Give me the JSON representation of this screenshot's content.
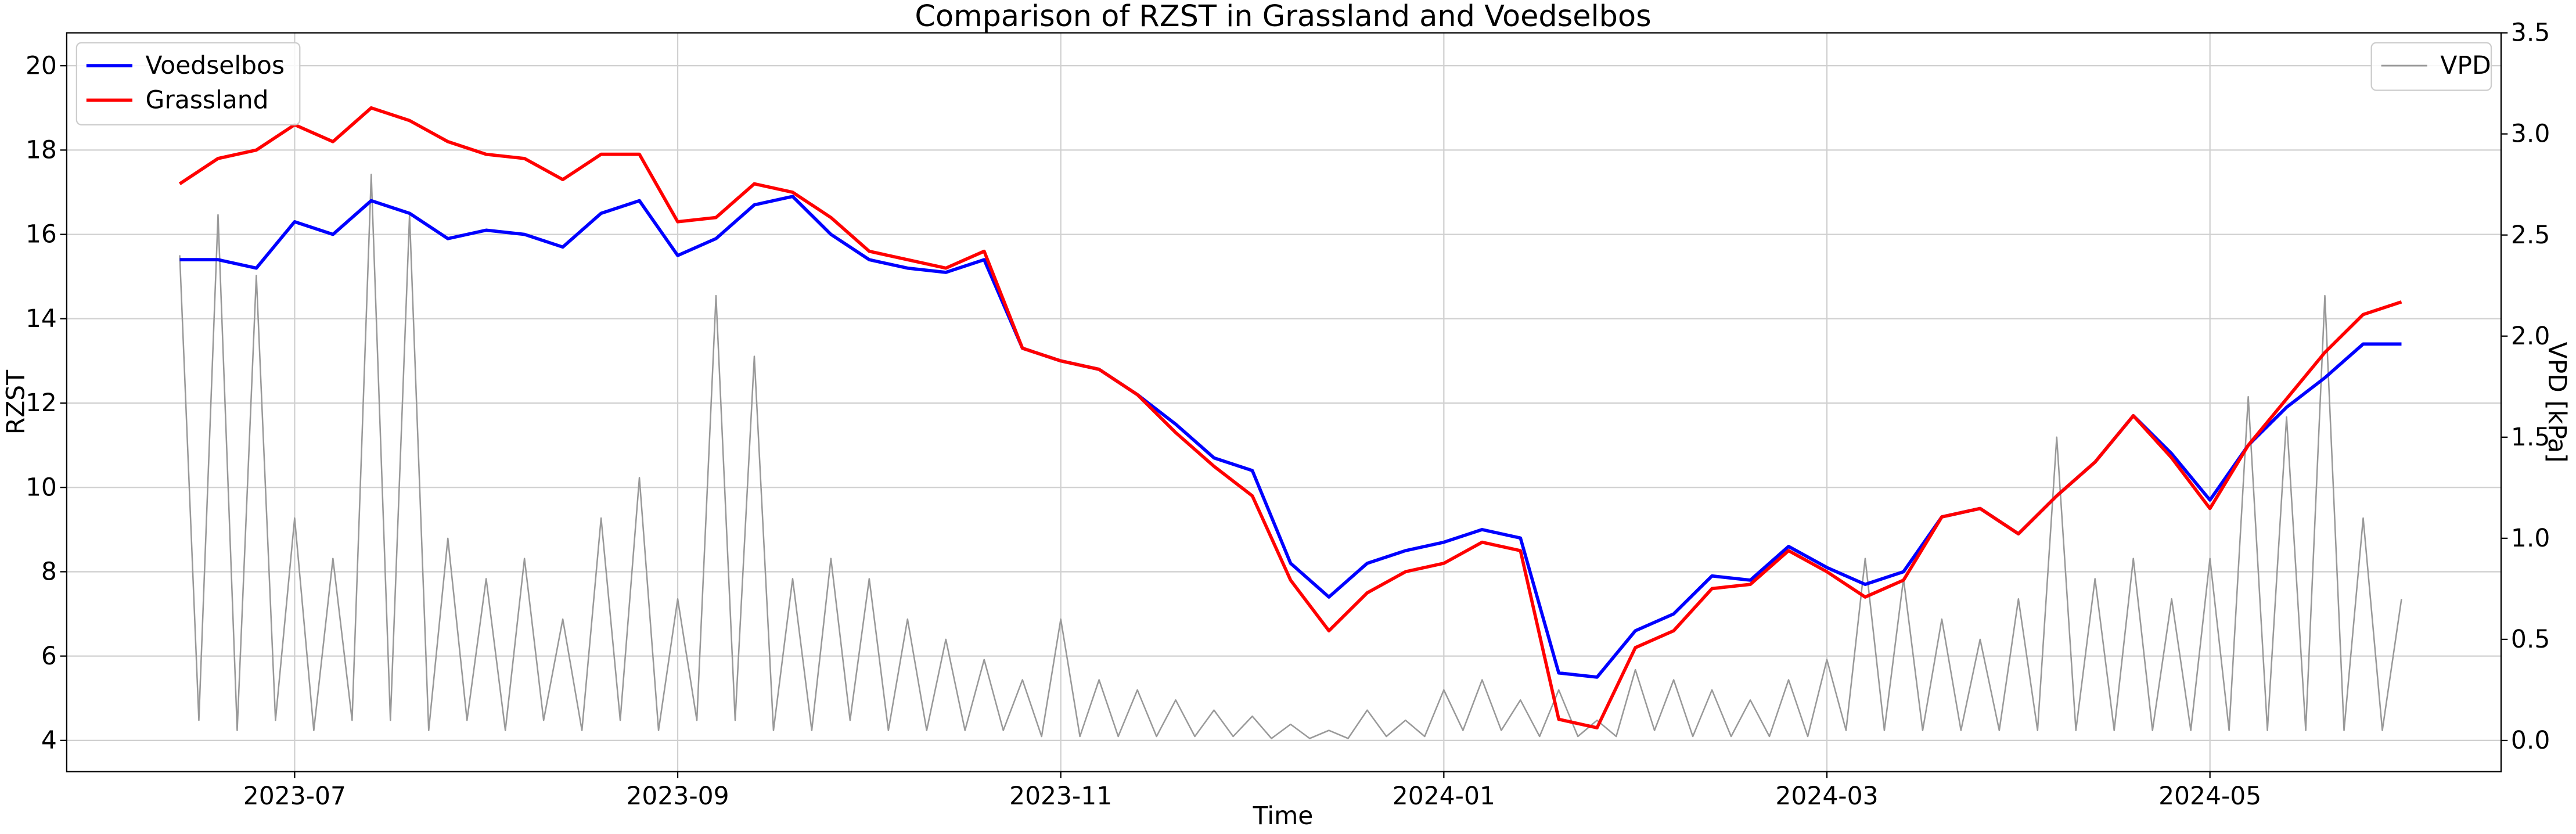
{
  "chart_data": {
    "type": "line",
    "title": "Comparison of RZST in Grassland and Voedselbos",
    "xlabel": "Time",
    "ylabel": "RZST",
    "y2label": "VPD [kPa]",
    "xlim": [
      4.81,
      17.52
    ],
    "xticks": [
      {
        "value": 6,
        "label": "2023-07"
      },
      {
        "value": 8,
        "label": "2023-09"
      },
      {
        "value": 10,
        "label": "2023-11"
      },
      {
        "value": 12,
        "label": "2024-01"
      },
      {
        "value": 14,
        "label": "2024-03"
      },
      {
        "value": 16,
        "label": "2024-05"
      }
    ],
    "ylim": [
      3.26,
      20.78
    ],
    "yticks": [
      4,
      6,
      8,
      10,
      12,
      14,
      16,
      18,
      20
    ],
    "y2lim": [
      -0.154,
      3.5
    ],
    "y2ticks": [
      {
        "value": 0,
        "label": "0.0"
      },
      0.5,
      {
        "value": 1,
        "label": "1.0"
      },
      1.5,
      {
        "value": 2,
        "label": "2.0"
      },
      2.5,
      {
        "value": 3,
        "label": "3.0"
      },
      3.5
    ],
    "grid": true,
    "legend": "upper left",
    "y2_legend": "upper right",
    "x": [
      5.4,
      5.6,
      5.8,
      6.0,
      6.2,
      6.4,
      6.6,
      6.8,
      7.0,
      7.2,
      7.4,
      7.6,
      7.8,
      8.0,
      8.2,
      8.4,
      8.6,
      8.8,
      9.0,
      9.2,
      9.4,
      9.6,
      9.8,
      10.0,
      10.2,
      10.4,
      10.6,
      10.8,
      11.0,
      11.2,
      11.4,
      11.6,
      11.8,
      12.0,
      12.2,
      12.4,
      12.6,
      12.8,
      13.0,
      13.2,
      13.4,
      13.6,
      13.8,
      14.0,
      14.2,
      14.4,
      14.6,
      14.8,
      15.0,
      15.2,
      15.4,
      15.6,
      15.8,
      16.0,
      16.2,
      16.4,
      16.6,
      16.8,
      17.0
    ],
    "series": [
      {
        "name": "Voedselbos",
        "color": "#0000ff",
        "values": [
          15.4,
          15.4,
          15.2,
          16.3,
          16.0,
          16.8,
          16.5,
          15.9,
          16.1,
          16.0,
          15.7,
          16.5,
          16.8,
          15.5,
          15.9,
          16.7,
          16.9,
          16.0,
          15.4,
          15.2,
          15.1,
          15.4,
          13.3,
          13.0,
          12.8,
          12.2,
          11.5,
          10.7,
          10.4,
          8.2,
          7.4,
          8.2,
          8.5,
          8.7,
          9.0,
          8.8,
          5.6,
          5.5,
          6.6,
          7.0,
          7.9,
          7.8,
          8.6,
          8.1,
          7.7,
          8.0,
          9.3,
          9.5,
          8.9,
          9.8,
          10.6,
          11.7,
          10.8,
          9.7,
          11.0,
          11.9,
          12.6,
          13.4,
          13.4
        ]
      },
      {
        "name": "Grassland",
        "color": "#ff0000",
        "values": [
          17.2,
          17.8,
          18.0,
          18.6,
          18.2,
          19.0,
          18.7,
          18.2,
          17.9,
          17.8,
          17.3,
          17.9,
          17.9,
          16.3,
          16.4,
          17.2,
          17.0,
          16.4,
          15.6,
          15.4,
          15.2,
          15.6,
          13.3,
          13.0,
          12.8,
          12.2,
          11.3,
          10.5,
          9.8,
          7.8,
          6.6,
          7.5,
          8.0,
          8.2,
          8.7,
          8.5,
          4.5,
          4.3,
          6.2,
          6.6,
          7.6,
          7.7,
          8.5,
          8.0,
          7.4,
          7.8,
          9.3,
          9.5,
          8.9,
          9.8,
          10.6,
          11.7,
          10.7,
          9.5,
          11.0,
          12.1,
          13.2,
          14.1,
          14.4
        ]
      },
      {
        "name": "VPD",
        "color": "#999999",
        "axis": "y2",
        "x": [
          5.4,
          5.5,
          5.6,
          5.7,
          5.8,
          5.9,
          6.0,
          6.1,
          6.2,
          6.3,
          6.4,
          6.5,
          6.6,
          6.7,
          6.8,
          6.9,
          7.0,
          7.1,
          7.2,
          7.3,
          7.4,
          7.5,
          7.6,
          7.7,
          7.8,
          7.9,
          8.0,
          8.1,
          8.2,
          8.3,
          8.4,
          8.5,
          8.6,
          8.7,
          8.8,
          8.9,
          9.0,
          9.1,
          9.2,
          9.3,
          9.4,
          9.5,
          9.6,
          9.7,
          9.8,
          9.9,
          10.0,
          10.1,
          10.2,
          10.3,
          10.4,
          10.5,
          10.6,
          10.7,
          10.8,
          10.9,
          11.0,
          11.1,
          11.2,
          11.3,
          11.4,
          11.5,
          11.6,
          11.7,
          11.8,
          11.9,
          12.0,
          12.1,
          12.2,
          12.3,
          12.4,
          12.5,
          12.6,
          12.7,
          12.8,
          12.9,
          13.0,
          13.1,
          13.2,
          13.3,
          13.4,
          13.5,
          13.6,
          13.7,
          13.8,
          13.9,
          14.0,
          14.1,
          14.2,
          14.3,
          14.4,
          14.5,
          14.6,
          14.7,
          14.8,
          14.9,
          15.0,
          15.1,
          15.2,
          15.3,
          15.4,
          15.5,
          15.6,
          15.7,
          15.8,
          15.9,
          16.0,
          16.1,
          16.2,
          16.3,
          16.4,
          16.5,
          16.6,
          16.7,
          16.8,
          16.9,
          17.0
        ],
        "values": [
          2.4,
          0.1,
          2.6,
          0.05,
          2.3,
          0.1,
          1.1,
          0.05,
          0.9,
          0.1,
          2.8,
          0.1,
          2.6,
          0.05,
          1.0,
          0.1,
          0.8,
          0.05,
          0.9,
          0.1,
          0.6,
          0.05,
          1.1,
          0.1,
          1.3,
          0.05,
          0.7,
          0.1,
          2.2,
          0.1,
          1.9,
          0.05,
          0.8,
          0.05,
          0.9,
          0.1,
          0.8,
          0.05,
          0.6,
          0.05,
          0.5,
          0.05,
          0.4,
          0.05,
          0.3,
          0.02,
          0.6,
          0.02,
          0.3,
          0.02,
          0.25,
          0.02,
          0.2,
          0.02,
          0.15,
          0.02,
          0.12,
          0.01,
          0.08,
          0.01,
          0.05,
          0.01,
          0.15,
          0.02,
          0.1,
          0.02,
          0.25,
          0.05,
          0.3,
          0.05,
          0.2,
          0.02,
          0.25,
          0.02,
          0.1,
          0.02,
          0.35,
          0.05,
          0.3,
          0.02,
          0.25,
          0.02,
          0.2,
          0.02,
          0.3,
          0.02,
          0.4,
          0.05,
          0.9,
          0.05,
          0.8,
          0.05,
          0.6,
          0.05,
          0.5,
          0.05,
          0.7,
          0.05,
          1.5,
          0.05,
          0.8,
          0.05,
          0.9,
          0.05,
          0.7,
          0.05,
          0.9,
          0.05,
          1.7,
          0.05,
          1.6,
          0.05,
          2.2,
          0.05,
          1.1,
          0.05,
          0.7
        ]
      }
    ]
  }
}
